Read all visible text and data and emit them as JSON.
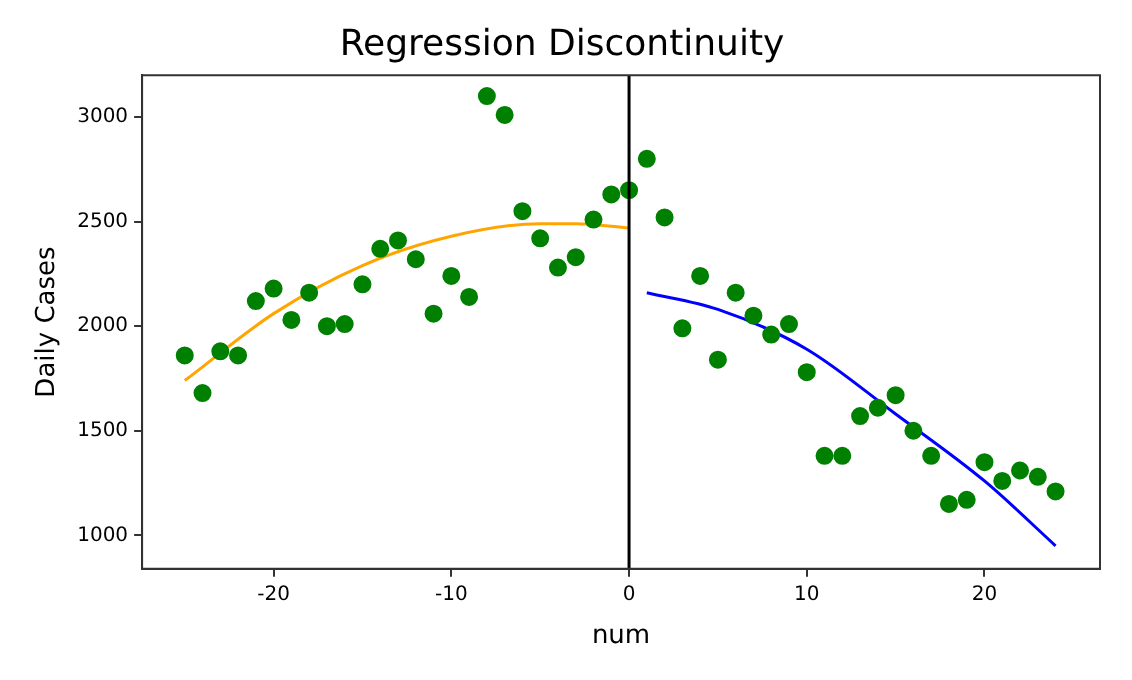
{
  "chart_data": {
    "type": "scatter",
    "title": "Regression Discontinuity",
    "xlabel": "num",
    "ylabel": "Daily Cases",
    "xlim": [
      -27.4,
      26.5
    ],
    "xticks": [
      -20,
      -10,
      0,
      10,
      20
    ],
    "ylim": [
      840,
      3200
    ],
    "yticks": [
      1000,
      1500,
      2000,
      2500,
      3000
    ],
    "grid": false,
    "legend": false,
    "series": [
      {
        "type": "scatter",
        "marker": "circle",
        "color": "#008000",
        "x": [
          -25,
          -24,
          -23,
          -22,
          -21,
          -20,
          -19,
          -18,
          -17,
          -16,
          -15,
          -14,
          -13,
          -12,
          -11,
          -10,
          -9,
          -8,
          -7,
          -6,
          -5,
          -4,
          -3,
          -2,
          -1,
          0,
          1,
          2,
          3,
          4,
          5,
          6,
          7,
          8,
          9,
          10,
          11,
          12,
          13,
          14,
          15,
          16,
          17,
          18,
          19,
          20,
          21,
          22,
          23,
          24
        ],
        "values": [
          1860,
          1680,
          1880,
          1860,
          2120,
          2180,
          2030,
          2160,
          2000,
          2010,
          2200,
          2370,
          2410,
          2320,
          2060,
          2240,
          2140,
          3100,
          3010,
          2550,
          2420,
          2280,
          2330,
          2510,
          2630,
          2650,
          2800,
          2520,
          1990,
          2240,
          1840,
          2160,
          2050,
          1960,
          2010,
          1780,
          1380,
          1380,
          1570,
          1610,
          1670,
          1500,
          1380,
          1150,
          1170,
          1350,
          1260,
          1310,
          1280,
          1210
        ]
      },
      {
        "type": "line",
        "color": "#ffa500",
        "x": [
          -25,
          -20,
          -15,
          -10,
          -5,
          -3,
          0
        ],
        "values": [
          1740,
          2060,
          2290,
          2430,
          2490,
          2490,
          2470
        ]
      },
      {
        "type": "line",
        "color": "#0000ff",
        "x": [
          1,
          5,
          10,
          15,
          20,
          24
        ],
        "values": [
          2160,
          2080,
          1890,
          1580,
          1260,
          950
        ]
      }
    ],
    "ref_lines": [
      {
        "axis": "x",
        "value": 0,
        "color": "#000000"
      }
    ]
  }
}
